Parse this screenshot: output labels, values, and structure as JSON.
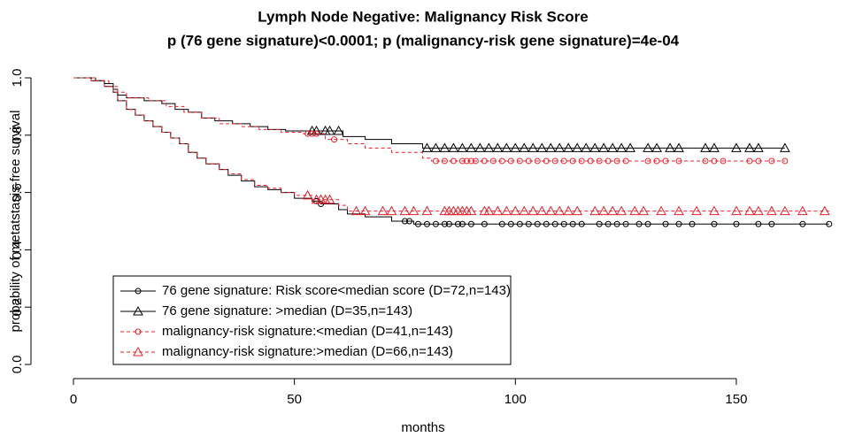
{
  "chart_data": {
    "type": "survival",
    "title": "Lymph Node Negative: Malignancy Risk Score",
    "subtitle": "p (76 gene signature)<0.0001; p (malignancy-risk gene signature)=4e-04",
    "x_label": "months",
    "y_label": "probability of metatstasis-free survival",
    "xlim": [
      0,
      172
    ],
    "ylim": [
      0,
      1
    ],
    "xticks": [
      0,
      50,
      100,
      150
    ],
    "yticks": [
      {
        "value": 0,
        "label": "0.0"
      },
      0.2,
      0.4,
      0.6,
      0.8,
      {
        "value": 1,
        "label": "1.0"
      }
    ],
    "series": [
      {
        "name": "76 gene signature: Risk score<median score (D=72,n=143)",
        "color": "#000000",
        "marker": "circle",
        "dashed": false,
        "x": [
          0,
          4,
          7,
          9,
          10,
          12,
          14,
          16,
          18,
          20,
          22,
          24,
          26,
          28,
          30,
          33,
          35,
          38,
          41,
          44,
          47,
          50,
          54,
          56,
          60,
          62,
          66,
          72,
          77,
          171
        ],
        "values": [
          1,
          0.99,
          0.97,
          0.95,
          0.92,
          0.89,
          0.87,
          0.85,
          0.83,
          0.81,
          0.79,
          0.77,
          0.74,
          0.72,
          0.7,
          0.68,
          0.66,
          0.64,
          0.62,
          0.61,
          0.6,
          0.58,
          0.57,
          0.56,
          0.54,
          0.525,
          0.515,
          0.5,
          0.49,
          0.49
        ],
        "censor_x": [
          55,
          56,
          75,
          76,
          78,
          80,
          82,
          84,
          85,
          87,
          88,
          90,
          93,
          97,
          99,
          101,
          103,
          105,
          107,
          109,
          111,
          113,
          115,
          119,
          121,
          123,
          125,
          128,
          130,
          134,
          137,
          140,
          145,
          150,
          155,
          158,
          165,
          171
        ],
        "censor_values": [
          0.57,
          0.56,
          0.5,
          0.5,
          0.49,
          0.49,
          0.49,
          0.49,
          0.49,
          0.49,
          0.49,
          0.49,
          0.49,
          0.49,
          0.49,
          0.49,
          0.49,
          0.49,
          0.49,
          0.49,
          0.49,
          0.49,
          0.49,
          0.49,
          0.49,
          0.49,
          0.49,
          0.49,
          0.49,
          0.49,
          0.49,
          0.49,
          0.49,
          0.49,
          0.49,
          0.49,
          0.49,
          0.49
        ]
      },
      {
        "name": "76 gene signature: >median (D=35,n=143)",
        "color": "#000000",
        "marker": "triangle",
        "dashed": false,
        "x": [
          0,
          5,
          7,
          9,
          10,
          12,
          16,
          20,
          23,
          26,
          29,
          32,
          36,
          40,
          44,
          48,
          61,
          66,
          72,
          79,
          161
        ],
        "values": [
          1,
          0.99,
          0.98,
          0.96,
          0.94,
          0.93,
          0.92,
          0.91,
          0.89,
          0.88,
          0.86,
          0.85,
          0.84,
          0.83,
          0.82,
          0.815,
          0.795,
          0.785,
          0.77,
          0.755,
          0.755
        ],
        "censor_x": [
          54,
          55,
          57,
          58,
          60,
          80,
          82,
          84,
          86,
          88,
          90,
          92,
          94,
          96,
          98,
          100,
          102,
          104,
          106,
          108,
          110,
          112,
          114,
          116,
          118,
          120,
          122,
          124,
          126,
          130,
          132,
          135,
          137,
          143,
          145,
          150,
          153,
          155,
          161
        ],
        "censor_values": [
          0.815,
          0.815,
          0.815,
          0.815,
          0.815,
          0.755,
          0.755,
          0.755,
          0.755,
          0.755,
          0.755,
          0.755,
          0.755,
          0.755,
          0.755,
          0.755,
          0.755,
          0.755,
          0.755,
          0.755,
          0.755,
          0.755,
          0.755,
          0.755,
          0.755,
          0.755,
          0.755,
          0.755,
          0.755,
          0.755,
          0.755,
          0.755,
          0.755,
          0.755,
          0.755,
          0.755,
          0.755,
          0.755,
          0.755
        ]
      },
      {
        "name": "malignancy-risk signature:<median (D=41,n=143)",
        "color": "#e8202a",
        "marker": "circle",
        "dashed": true,
        "x": [
          0,
          5,
          8,
          10,
          12,
          17,
          21,
          25,
          29,
          33,
          38,
          42,
          47,
          52,
          57,
          62,
          66,
          72,
          79,
          81,
          161
        ],
        "values": [
          1,
          0.99,
          0.97,
          0.95,
          0.93,
          0.92,
          0.9,
          0.88,
          0.86,
          0.84,
          0.83,
          0.82,
          0.81,
          0.805,
          0.785,
          0.77,
          0.755,
          0.74,
          0.72,
          0.71,
          0.71
        ],
        "censor_x": [
          53,
          54,
          55,
          59,
          82,
          84,
          86,
          88,
          89,
          90,
          91,
          93,
          95,
          97,
          99,
          101,
          103,
          105,
          107,
          109,
          111,
          113,
          115,
          117,
          119,
          121,
          123,
          125,
          130,
          132,
          134,
          137,
          143,
          145,
          147,
          153,
          155,
          158,
          161
        ],
        "censor_values": [
          0.805,
          0.805,
          0.805,
          0.785,
          0.71,
          0.71,
          0.71,
          0.71,
          0.71,
          0.71,
          0.71,
          0.71,
          0.71,
          0.71,
          0.71,
          0.71,
          0.71,
          0.71,
          0.71,
          0.71,
          0.71,
          0.71,
          0.71,
          0.71,
          0.71,
          0.71,
          0.71,
          0.71,
          0.71,
          0.71,
          0.71,
          0.71,
          0.71,
          0.71,
          0.71,
          0.71,
          0.71,
          0.71,
          0.71
        ]
      },
      {
        "name": "malignancy-risk signature:>median (D=66,n=143)",
        "color": "#e8202a",
        "marker": "triangle",
        "dashed": true,
        "x": [
          0,
          4,
          7,
          9,
          10,
          12,
          14,
          16,
          18,
          20,
          22,
          24,
          26,
          28,
          30,
          33,
          35,
          38,
          41,
          44,
          47,
          50,
          54,
          60,
          62,
          171
        ],
        "values": [
          1,
          0.99,
          0.97,
          0.95,
          0.92,
          0.89,
          0.87,
          0.85,
          0.83,
          0.81,
          0.79,
          0.77,
          0.74,
          0.72,
          0.7,
          0.68,
          0.665,
          0.645,
          0.625,
          0.615,
          0.6,
          0.59,
          0.575,
          0.555,
          0.535,
          0.535
        ],
        "censor_x": [
          53,
          55,
          56,
          57,
          58,
          64,
          66,
          70,
          72,
          75,
          77,
          80,
          84,
          85,
          86,
          87,
          88,
          89,
          90,
          93,
          94,
          96,
          98,
          100,
          102,
          104,
          106,
          108,
          110,
          112,
          114,
          118,
          120,
          122,
          124,
          127,
          129,
          133,
          137,
          141,
          145,
          150,
          153,
          155,
          158,
          161,
          165,
          170
        ],
        "censor_values": [
          0.59,
          0.575,
          0.575,
          0.575,
          0.575,
          0.535,
          0.535,
          0.535,
          0.535,
          0.535,
          0.535,
          0.535,
          0.535,
          0.535,
          0.535,
          0.535,
          0.535,
          0.535,
          0.535,
          0.535,
          0.535,
          0.535,
          0.535,
          0.535,
          0.535,
          0.535,
          0.535,
          0.535,
          0.535,
          0.535,
          0.535,
          0.535,
          0.535,
          0.535,
          0.535,
          0.535,
          0.535,
          0.535,
          0.535,
          0.535,
          0.535,
          0.535,
          0.535,
          0.535,
          0.535,
          0.535,
          0.535,
          0.535
        ]
      }
    ]
  }
}
